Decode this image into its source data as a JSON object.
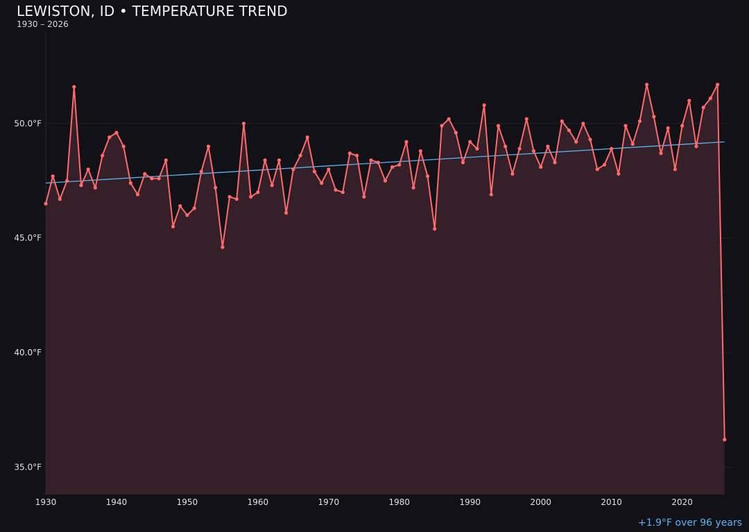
{
  "header": {
    "title": "LEWISTON, ID • TEMPERATURE TREND",
    "subtitle": "1930 – 2026"
  },
  "footer": {
    "trend_note": "+1.9°F over 96 years"
  },
  "colors": {
    "background": "#121118",
    "series": "#ff6b6b",
    "area_fill": "#35202a",
    "trend": "#5ab4f0",
    "grid": "#221f26"
  },
  "chart_data": {
    "type": "line",
    "title": "LEWISTON, ID • TEMPERATURE TREND",
    "subtitle": "1930 – 2026",
    "xlabel": "",
    "ylabel": "",
    "xlim": [
      1930,
      2027
    ],
    "ylim": [
      33.8,
      54.0
    ],
    "grid": true,
    "area_fill": true,
    "x_ticks": [
      1930,
      1940,
      1950,
      1960,
      1970,
      1980,
      1990,
      2000,
      2010,
      2020
    ],
    "y_ticks": [
      {
        "value": 35,
        "label": "35.0°F"
      },
      {
        "value": 40,
        "label": "40.0°F"
      },
      {
        "value": 45,
        "label": "45.0°F"
      },
      {
        "value": 50,
        "label": "50.0°F"
      }
    ],
    "x": [
      1930,
      1931,
      1932,
      1933,
      1934,
      1935,
      1936,
      1937,
      1938,
      1939,
      1940,
      1941,
      1942,
      1943,
      1944,
      1945,
      1946,
      1947,
      1948,
      1949,
      1950,
      1951,
      1952,
      1953,
      1954,
      1955,
      1956,
      1957,
      1958,
      1959,
      1960,
      1961,
      1962,
      1963,
      1964,
      1965,
      1966,
      1967,
      1968,
      1969,
      1970,
      1971,
      1972,
      1973,
      1974,
      1975,
      1976,
      1977,
      1978,
      1979,
      1980,
      1981,
      1982,
      1983,
      1984,
      1985,
      1986,
      1987,
      1988,
      1989,
      1990,
      1991,
      1992,
      1993,
      1994,
      1995,
      1996,
      1997,
      1998,
      1999,
      2000,
      2001,
      2002,
      2003,
      2004,
      2005,
      2006,
      2007,
      2008,
      2009,
      2010,
      2011,
      2012,
      2013,
      2014,
      2015,
      2016,
      2017,
      2018,
      2019,
      2020,
      2021,
      2022,
      2023,
      2024,
      2025,
      2026
    ],
    "values": [
      46.5,
      47.7,
      46.7,
      47.5,
      51.6,
      47.3,
      48.0,
      47.2,
      48.6,
      49.4,
      49.6,
      49.0,
      47.4,
      46.9,
      47.8,
      47.6,
      47.6,
      48.4,
      45.5,
      46.4,
      46.0,
      46.3,
      47.9,
      49.0,
      47.2,
      44.6,
      46.8,
      46.7,
      50.0,
      46.8,
      47.0,
      48.4,
      47.3,
      48.4,
      46.1,
      48.0,
      48.6,
      49.4,
      47.9,
      47.4,
      48.0,
      47.1,
      47.0,
      48.7,
      48.6,
      46.8,
      48.4,
      48.3,
      47.5,
      48.1,
      48.2,
      49.2,
      47.2,
      48.8,
      47.7,
      45.4,
      49.9,
      50.2,
      49.6,
      48.3,
      49.2,
      48.9,
      50.8,
      46.9,
      49.9,
      49.0,
      47.8,
      48.9,
      50.2,
      48.8,
      48.1,
      49.0,
      48.3,
      50.1,
      49.7,
      49.2,
      50.0,
      49.3,
      48.0,
      48.2,
      48.9,
      47.8,
      49.9,
      49.1,
      50.1,
      51.7,
      50.3,
      48.7,
      49.8,
      48.0,
      49.9,
      51.0,
      49.0,
      50.7,
      51.1,
      51.7,
      36.2
    ],
    "trend": {
      "x": [
        1930,
        2026
      ],
      "values": [
        47.4,
        49.2
      ]
    }
  }
}
